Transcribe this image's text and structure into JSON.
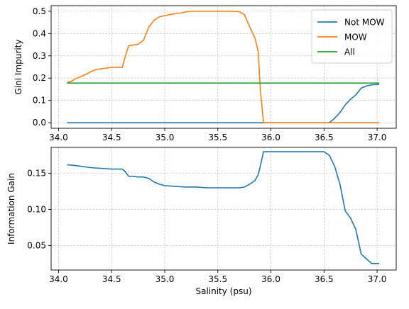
{
  "chart_data": [
    {
      "type": "line",
      "xlabel": "",
      "ylabel": "Gini Impurity",
      "xlim": [
        33.93,
        37.18
      ],
      "ylim": [
        -0.025,
        0.525
      ],
      "xticks": [
        34.0,
        34.5,
        35.0,
        35.5,
        36.0,
        36.5,
        37.0
      ],
      "xtick_labels": [
        "34.0",
        "34.5",
        "35.0",
        "35.5",
        "36.0",
        "36.5",
        "37.0"
      ],
      "yticks": [
        0.0,
        0.1,
        0.2,
        0.3,
        0.4,
        0.5
      ],
      "ytick_labels": [
        "0.0",
        "0.1",
        "0.2",
        "0.3",
        "0.4",
        "0.5"
      ],
      "grid": true,
      "legend": "top-right",
      "series": [
        {
          "name": "Not MOW",
          "color": "#1f77b4",
          "x": [
            34.08,
            34.5,
            35.0,
            35.5,
            36.0,
            36.5,
            36.55,
            36.6,
            36.65,
            36.7,
            36.75,
            36.8,
            36.85,
            36.9,
            36.95,
            37.02
          ],
          "y": [
            0.0,
            0.0,
            0.0,
            0.0,
            0.0,
            0.0,
            0.0,
            0.02,
            0.045,
            0.08,
            0.105,
            0.125,
            0.155,
            0.165,
            0.17,
            0.172
          ]
        },
        {
          "name": "MOW",
          "color": "#ff7f0e",
          "x": [
            34.08,
            34.12,
            34.15,
            34.2,
            34.25,
            34.3,
            34.35,
            34.4,
            34.5,
            34.6,
            34.63,
            34.66,
            34.7,
            34.75,
            34.8,
            34.85,
            34.9,
            34.95,
            35.0,
            35.05,
            35.1,
            35.15,
            35.2,
            35.25,
            35.3,
            35.35,
            35.4,
            35.5,
            35.6,
            35.7,
            35.75,
            35.8,
            35.85,
            35.88,
            35.9,
            35.93,
            36.0,
            36.5,
            37.02
          ],
          "y": [
            0.18,
            0.185,
            0.195,
            0.205,
            0.215,
            0.228,
            0.238,
            0.242,
            0.248,
            0.248,
            0.3,
            0.345,
            0.348,
            0.352,
            0.37,
            0.43,
            0.46,
            0.475,
            0.48,
            0.485,
            0.49,
            0.492,
            0.497,
            0.5,
            0.5,
            0.5,
            0.5,
            0.5,
            0.5,
            0.498,
            0.485,
            0.43,
            0.38,
            0.32,
            0.15,
            0.0,
            0.0,
            0.0,
            0.0
          ]
        },
        {
          "name": "All",
          "color": "#2ca02c",
          "x": [
            34.08,
            37.02
          ],
          "y": [
            0.178,
            0.178
          ]
        }
      ]
    },
    {
      "type": "line",
      "xlabel": "Salinity (psu)",
      "ylabel": "Information Gain",
      "xlim": [
        33.93,
        37.18
      ],
      "ylim": [
        0.016,
        0.186
      ],
      "xticks": [
        34.0,
        34.5,
        35.0,
        35.5,
        36.0,
        36.5,
        37.0
      ],
      "xtick_labels": [
        "34.0",
        "34.5",
        "35.0",
        "35.5",
        "36.0",
        "36.5",
        "37.0"
      ],
      "yticks": [
        0.05,
        0.1,
        0.15
      ],
      "ytick_labels": [
        "0.05",
        "0.10",
        "0.15"
      ],
      "grid": true,
      "series": [
        {
          "name": "",
          "color": "#1f77b4",
          "x": [
            34.08,
            34.15,
            34.2,
            34.3,
            34.4,
            34.5,
            34.6,
            34.63,
            34.66,
            34.7,
            34.75,
            34.8,
            34.85,
            34.9,
            34.95,
            35.0,
            35.1,
            35.2,
            35.3,
            35.4,
            35.5,
            35.6,
            35.7,
            35.75,
            35.8,
            35.85,
            35.88,
            35.9,
            35.93,
            36.0,
            36.5,
            36.55,
            36.6,
            36.65,
            36.7,
            36.75,
            36.8,
            36.85,
            36.95,
            37.02
          ],
          "y": [
            0.162,
            0.161,
            0.16,
            0.158,
            0.157,
            0.156,
            0.156,
            0.152,
            0.146,
            0.146,
            0.145,
            0.145,
            0.143,
            0.138,
            0.135,
            0.133,
            0.132,
            0.131,
            0.131,
            0.13,
            0.13,
            0.13,
            0.13,
            0.131,
            0.135,
            0.14,
            0.148,
            0.16,
            0.18,
            0.18,
            0.18,
            0.175,
            0.16,
            0.135,
            0.098,
            0.088,
            0.072,
            0.038,
            0.025,
            0.025
          ]
        }
      ]
    }
  ]
}
